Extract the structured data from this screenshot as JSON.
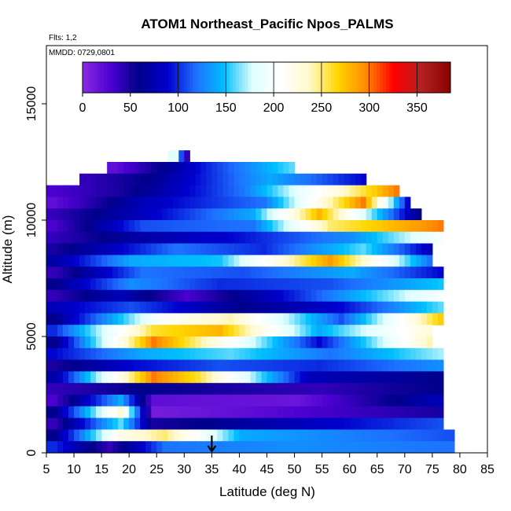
{
  "chart_data": {
    "type": "heatmap",
    "title": "ATOM1 Northeast_Pacific Npos_PALMS",
    "flights_label": "Flts: 1,2",
    "dates_label": "MMDD: 0729,0801",
    "xlabel": "Latitude (deg N)",
    "ylabel": "Altitude (m)",
    "xlim": [
      5,
      85
    ],
    "ylim": [
      0,
      17500
    ],
    "x_ticks": [
      "5",
      "10",
      "15",
      "20",
      "25",
      "30",
      "35",
      "40",
      "45",
      "50",
      "55",
      "60",
      "65",
      "70",
      "75",
      "80",
      "85"
    ],
    "y_ticks": [
      "0",
      "5000",
      "10000",
      "15000"
    ],
    "colorbar": {
      "range": [
        0,
        385
      ],
      "ticks": [
        "0",
        "50",
        "100",
        "150",
        "200",
        "250",
        "300",
        "350"
      ],
      "colors": [
        "#8a2be2",
        "#4b00d0",
        "#00008b",
        "#0000cd",
        "#1e6fff",
        "#00bfff",
        "#e0ffff",
        "#ffffff",
        "#fffacd",
        "#ffd700",
        "#ff8c00",
        "#ff0000",
        "#b22222",
        "#8b0000"
      ]
    },
    "marker": {
      "x": 35,
      "label": "arrow"
    },
    "layers": [
      {
        "alt": 12750,
        "lat": [
          28,
          30
        ],
        "values": [
          180,
          40
        ]
      },
      {
        "alt": 12250,
        "lat": [
          17,
          34,
          49
        ],
        "values": [
          20,
          100,
          160
        ]
      },
      {
        "alt": 11750,
        "lat": [
          12,
          23,
          45,
          62
        ],
        "values": [
          40,
          60,
          140,
          90
        ]
      },
      {
        "alt": 11250,
        "lat": [
          6,
          18,
          40,
          64,
          68
        ],
        "values": [
          30,
          50,
          120,
          270,
          300
        ]
      },
      {
        "alt": 10750,
        "lat": [
          6,
          22,
          44,
          62,
          70
        ],
        "values": [
          20,
          80,
          120,
          300,
          90
        ]
      },
      {
        "alt": 10250,
        "lat": [
          6,
          25,
          42,
          54,
          72
        ],
        "values": [
          40,
          90,
          140,
          280,
          60
        ]
      },
      {
        "alt": 9750,
        "lat": [
          6,
          22,
          42,
          56,
          76
        ],
        "values": [
          30,
          110,
          120,
          250,
          300
        ]
      },
      {
        "alt": 9250,
        "lat": [
          6,
          20,
          38,
          60,
          76
        ],
        "values": [
          40,
          70,
          90,
          130,
          200
        ]
      },
      {
        "alt": 8750,
        "lat": [
          6,
          28,
          44,
          62,
          74
        ],
        "values": [
          50,
          120,
          100,
          160,
          80
        ]
      },
      {
        "alt": 8250,
        "lat": [
          6,
          20,
          36,
          56,
          74
        ],
        "values": [
          70,
          140,
          150,
          290,
          120
        ]
      },
      {
        "alt": 7750,
        "lat": [
          6,
          22,
          40,
          60,
          76
        ],
        "values": [
          40,
          120,
          110,
          140,
          90
        ]
      },
      {
        "alt": 7250,
        "lat": [
          6,
          20,
          36,
          56,
          76
        ],
        "values": [
          60,
          130,
          100,
          110,
          150
        ]
      },
      {
        "alt": 6750,
        "lat": [
          6,
          18,
          30,
          50,
          76
        ],
        "values": [
          40,
          80,
          30,
          100,
          200
        ]
      },
      {
        "alt": 6250,
        "lat": [
          6,
          20,
          40,
          58,
          76
        ],
        "values": [
          80,
          110,
          60,
          90,
          160
        ]
      },
      {
        "alt": 5750,
        "lat": [
          6,
          26,
          38,
          58,
          76
        ],
        "values": [
          60,
          210,
          240,
          110,
          270
        ]
      },
      {
        "alt": 5250,
        "lat": [
          6,
          24,
          36,
          54,
          74
        ],
        "values": [
          100,
          260,
          280,
          140,
          230
        ]
      },
      {
        "alt": 4750,
        "lat": [
          6,
          24,
          36,
          54,
          74
        ],
        "values": [
          60,
          300,
          220,
          90,
          240
        ]
      },
      {
        "alt": 4250,
        "lat": [
          6,
          22,
          38,
          56,
          76
        ],
        "values": [
          90,
          140,
          160,
          120,
          170
        ]
      },
      {
        "alt": 3750,
        "lat": [
          6,
          20,
          36,
          54,
          76
        ],
        "values": [
          50,
          90,
          110,
          100,
          130
        ]
      },
      {
        "alt": 3250,
        "lat": [
          6,
          24,
          32,
          52,
          76
        ],
        "values": [
          70,
          300,
          260,
          80,
          60
        ]
      },
      {
        "alt": 2750,
        "lat": [
          6,
          22,
          36,
          54,
          76
        ],
        "values": [
          40,
          60,
          50,
          40,
          60
        ]
      },
      {
        "alt": 2250,
        "lat": [
          6,
          18,
          24,
          50,
          76
        ],
        "values": [
          30,
          140,
          20,
          15,
          80
        ]
      },
      {
        "alt": 1750,
        "lat": [
          6,
          18,
          24,
          40,
          76
        ],
        "values": [
          60,
          230,
          10,
          20,
          50
        ]
      },
      {
        "alt": 1250,
        "lat": [
          6,
          18,
          24,
          50,
          76
        ],
        "values": [
          40,
          160,
          50,
          80,
          110
        ]
      },
      {
        "alt": 750,
        "lat": [
          6,
          18,
          26,
          40,
          78
        ],
        "values": [
          60,
          220,
          250,
          140,
          110
        ]
      },
      {
        "alt": 250,
        "lat": [
          6,
          16,
          26,
          50,
          78
        ],
        "values": [
          100,
          40,
          120,
          130,
          120
        ]
      }
    ]
  }
}
